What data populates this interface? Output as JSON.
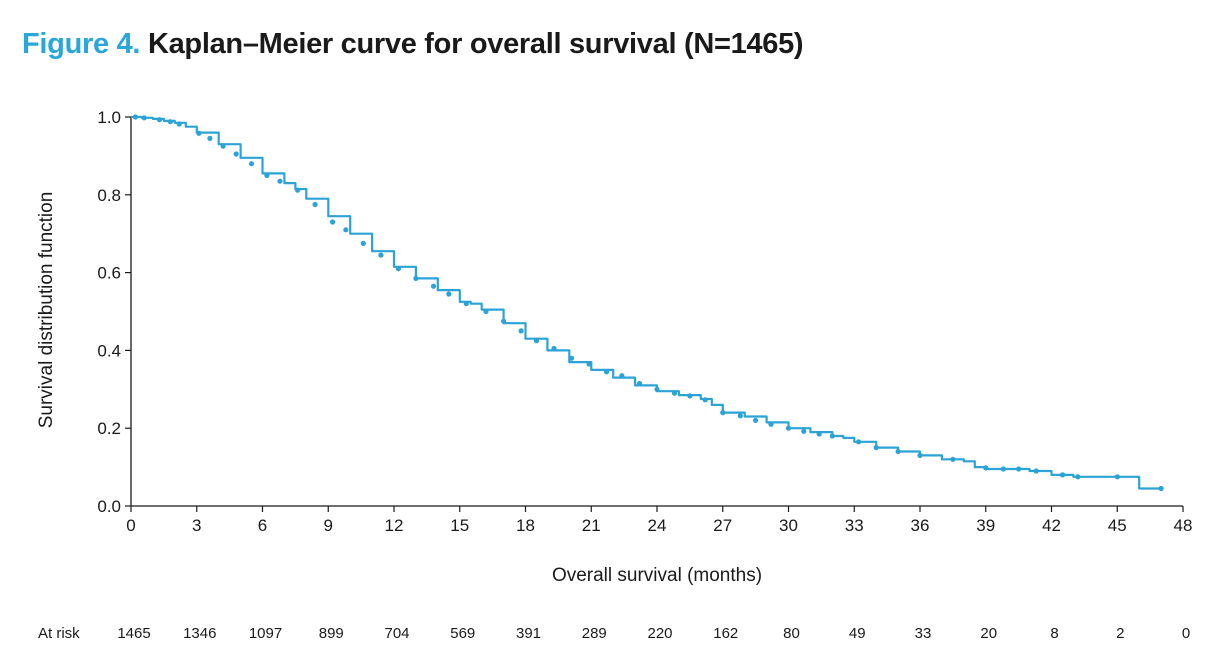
{
  "figure": {
    "label": "Figure 4.",
    "title": "Kaplan–Meier curve for overall survival (N=1465)"
  },
  "colors": {
    "accent": "#29a7d8",
    "curve": "#2ba3d6",
    "axis": "#1a1a1a"
  },
  "at_risk": {
    "label": "At risk",
    "counts": [
      "1465",
      "1346",
      "1097",
      "899",
      "704",
      "569",
      "391",
      "289",
      "220",
      "162",
      "80",
      "49",
      "33",
      "20",
      "8",
      "2",
      "0"
    ]
  },
  "chart_data": {
    "type": "line",
    "step": true,
    "title": "",
    "xlabel": "Overall survival (months)",
    "ylabel": "Survival distribution function",
    "xlim": [
      0,
      48
    ],
    "ylim": [
      0,
      1.0
    ],
    "xticks": [
      0,
      3,
      6,
      9,
      12,
      15,
      18,
      21,
      24,
      27,
      30,
      33,
      36,
      39,
      42,
      45,
      48
    ],
    "xtick_labels": [
      "0",
      "3",
      "6",
      "9",
      "12",
      "15",
      "18",
      "21",
      "24",
      "27",
      "30",
      "33",
      "36",
      "39",
      "42",
      "45",
      "48"
    ],
    "yticks": [
      0.0,
      0.2,
      0.4,
      0.6,
      0.8,
      1.0
    ],
    "ytick_labels": [
      "0.0",
      "0.2",
      "0.4",
      "0.6",
      "0.8",
      "1.0"
    ],
    "grid": false,
    "legend": "none",
    "series": [
      {
        "x": [
          0,
          0.5,
          1,
          1.5,
          2,
          2.5,
          3,
          4,
          5,
          6,
          7,
          7.5,
          8,
          9,
          10,
          11,
          12,
          13,
          14,
          15,
          15.5,
          16,
          17,
          18,
          19,
          20,
          21,
          22,
          23,
          24,
          25,
          26,
          26.5,
          27,
          28,
          29,
          30,
          31,
          32,
          32.5,
          33,
          34,
          35,
          36,
          37,
          38,
          38.5,
          39,
          40,
          41,
          42,
          43,
          44,
          45,
          46,
          47
        ],
        "y": [
          1.0,
          0.998,
          0.995,
          0.99,
          0.985,
          0.975,
          0.96,
          0.93,
          0.895,
          0.855,
          0.83,
          0.815,
          0.79,
          0.745,
          0.7,
          0.655,
          0.615,
          0.585,
          0.555,
          0.525,
          0.52,
          0.505,
          0.47,
          0.43,
          0.4,
          0.37,
          0.35,
          0.33,
          0.31,
          0.295,
          0.285,
          0.275,
          0.26,
          0.24,
          0.23,
          0.215,
          0.2,
          0.19,
          0.18,
          0.175,
          0.165,
          0.15,
          0.14,
          0.13,
          0.12,
          0.115,
          0.1,
          0.095,
          0.095,
          0.09,
          0.08,
          0.075,
          0.075,
          0.075,
          0.045,
          0.045
        ]
      }
    ],
    "censored": {
      "x": [
        0.2,
        0.6,
        1.3,
        1.8,
        2.2,
        3.1,
        3.6,
        4.2,
        4.8,
        5.5,
        6.2,
        6.8,
        7.6,
        8.4,
        9.2,
        9.8,
        10.6,
        11.4,
        12.2,
        13.0,
        13.8,
        14.5,
        15.3,
        16.2,
        17.0,
        17.8,
        18.5,
        19.3,
        20.1,
        20.9,
        21.7,
        22.4,
        23.2,
        24.0,
        24.8,
        25.5,
        26.2,
        27.0,
        27.8,
        28.5,
        29.2,
        30.0,
        30.7,
        31.4,
        32.0,
        33.2,
        34.0,
        35.0,
        36.0,
        37.5,
        39.0,
        39.8,
        40.5,
        41.3,
        42.5,
        43.2,
        45.0,
        47.0
      ],
      "y": [
        1.0,
        0.998,
        0.993,
        0.988,
        0.982,
        0.958,
        0.945,
        0.925,
        0.905,
        0.88,
        0.85,
        0.835,
        0.812,
        0.775,
        0.73,
        0.71,
        0.675,
        0.645,
        0.61,
        0.585,
        0.565,
        0.545,
        0.52,
        0.5,
        0.475,
        0.45,
        0.425,
        0.405,
        0.38,
        0.365,
        0.345,
        0.335,
        0.315,
        0.3,
        0.29,
        0.283,
        0.273,
        0.24,
        0.232,
        0.22,
        0.21,
        0.2,
        0.192,
        0.185,
        0.18,
        0.165,
        0.15,
        0.14,
        0.13,
        0.12,
        0.098,
        0.095,
        0.095,
        0.09,
        0.08,
        0.075,
        0.075,
        0.045
      ]
    }
  }
}
